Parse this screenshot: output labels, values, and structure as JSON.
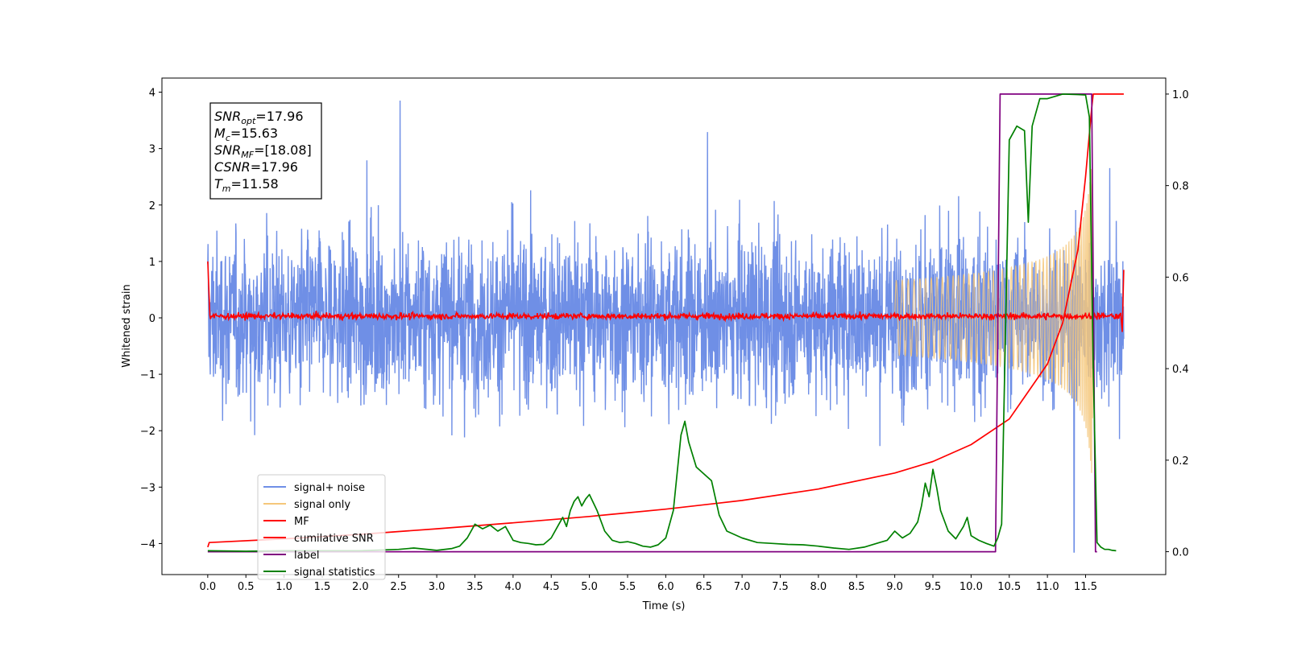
{
  "chart_data": {
    "type": "line",
    "xlabel": "Time (s)",
    "ylabel": "Whitened strain",
    "ylabel_right": "",
    "xlim": [
      -0.6,
      12.55
    ],
    "ylim": [
      -4.55,
      4.25
    ],
    "ylim_right": [
      -0.05,
      1.035
    ],
    "x_ticks": [
      "0.0",
      "0.5",
      "1.0",
      "1.5",
      "2.0",
      "2.5",
      "3.0",
      "3.5",
      "4.0",
      "4.5",
      "5.0",
      "5.5",
      "6.0",
      "6.5",
      "7.0",
      "7.5",
      "8.0",
      "8.5",
      "9.0",
      "9.5",
      "10.0",
      "10.5",
      "11.0",
      "11.5"
    ],
    "y_ticks": [
      "4",
      "3",
      "2",
      "1",
      "0",
      "−1",
      "−2",
      "−3",
      "−4"
    ],
    "y_ticks_right": [
      "1.0",
      "0.8",
      "0.6",
      "0.4",
      "0.2",
      "0.0"
    ],
    "legend_placement": "lower-left",
    "grid": false,
    "annotation": {
      "lines": [
        {
          "sym": "SNR",
          "sub": "opt",
          "value": "=17.96"
        },
        {
          "sym": "M",
          "sub": "c",
          "value": "=15.63"
        },
        {
          "sym": "SNR",
          "sub": "MF",
          "value": "=[18.08]"
        },
        {
          "sym": "CSNR",
          "sub": "",
          "value": "=17.96"
        },
        {
          "sym": "T",
          "sub": "m",
          "value": "=11.58"
        }
      ]
    },
    "series": [
      {
        "name": "signal+ noise",
        "color": "#6f8fe6",
        "axis": "left",
        "style": "noise",
        "x_range": [
          0,
          12
        ],
        "amplitude_typical": 1.3,
        "peak_values": [
          3.85,
          -4.15
        ]
      },
      {
        "name": "signal only",
        "color": "#f5c77a",
        "axis": "left",
        "style": "chirp",
        "x_range": [
          9.0,
          11.6
        ],
        "merger_time": 11.58,
        "peak_amplitude": 3.0
      },
      {
        "name": "MF",
        "color": "#ff0000",
        "axis": "left",
        "style": "matched-filter",
        "x": [
          0.0,
          0.03,
          6.0,
          11.9,
          11.97,
          12.0
        ],
        "y": [
          1.0,
          0.05,
          0.0,
          0.0,
          -0.3,
          0.85
        ],
        "noise_amplitude": 0.07
      },
      {
        "name": "cumilative SNR",
        "color": "#ff0000",
        "axis": "right",
        "x": [
          0.0,
          0.02,
          1.0,
          2.0,
          3.0,
          4.0,
          5.0,
          6.0,
          7.0,
          8.0,
          9.0,
          9.5,
          10.0,
          10.5,
          11.0,
          11.2,
          11.4,
          11.5,
          11.58,
          11.6,
          12.0
        ],
        "y": [
          0.01,
          0.02,
          0.028,
          0.038,
          0.05,
          0.063,
          0.077,
          0.093,
          0.112,
          0.137,
          0.172,
          0.197,
          0.234,
          0.29,
          0.41,
          0.5,
          0.66,
          0.82,
          0.97,
          1.0,
          1.0
        ]
      },
      {
        "name": "label",
        "color": "#800080",
        "axis": "right",
        "x": [
          0.0,
          10.32,
          10.38,
          11.58,
          11.63,
          11.65
        ],
        "y": [
          0.0,
          0.0,
          1.0,
          1.0,
          0.0,
          0.0
        ]
      },
      {
        "name": "signal statistics",
        "color": "#008000",
        "axis": "right",
        "x": [
          0.0,
          0.5,
          1.0,
          2.0,
          2.5,
          2.7,
          3.0,
          3.2,
          3.3,
          3.4,
          3.5,
          3.6,
          3.7,
          3.8,
          3.9,
          4.0,
          4.1,
          4.2,
          4.3,
          4.4,
          4.5,
          4.6,
          4.65,
          4.7,
          4.75,
          4.8,
          4.85,
          4.9,
          4.95,
          5.0,
          5.1,
          5.2,
          5.3,
          5.4,
          5.5,
          5.6,
          5.7,
          5.8,
          5.9,
          6.0,
          6.1,
          6.2,
          6.25,
          6.3,
          6.4,
          6.5,
          6.6,
          6.7,
          6.8,
          7.0,
          7.2,
          7.4,
          7.6,
          7.8,
          8.0,
          8.2,
          8.4,
          8.6,
          8.8,
          8.9,
          9.0,
          9.1,
          9.2,
          9.3,
          9.35,
          9.4,
          9.45,
          9.5,
          9.55,
          9.6,
          9.7,
          9.8,
          9.9,
          9.95,
          10.0,
          10.1,
          10.2,
          10.3,
          10.35,
          10.4,
          10.5,
          10.6,
          10.7,
          10.75,
          10.8,
          10.9,
          11.0,
          11.2,
          11.4,
          11.5,
          11.55,
          11.6,
          11.65,
          11.7,
          11.75,
          11.8,
          11.85,
          11.9
        ],
        "y": [
          0.002,
          0.001,
          0.002,
          0.002,
          0.005,
          0.008,
          0.003,
          0.007,
          0.012,
          0.03,
          0.06,
          0.05,
          0.058,
          0.045,
          0.055,
          0.025,
          0.02,
          0.018,
          0.015,
          0.016,
          0.03,
          0.06,
          0.075,
          0.055,
          0.09,
          0.11,
          0.12,
          0.1,
          0.115,
          0.125,
          0.09,
          0.045,
          0.025,
          0.02,
          0.022,
          0.018,
          0.012,
          0.01,
          0.015,
          0.03,
          0.09,
          0.255,
          0.285,
          0.24,
          0.185,
          0.17,
          0.155,
          0.08,
          0.045,
          0.03,
          0.02,
          0.018,
          0.016,
          0.015,
          0.012,
          0.008,
          0.005,
          0.01,
          0.02,
          0.025,
          0.045,
          0.03,
          0.04,
          0.065,
          0.1,
          0.15,
          0.12,
          0.18,
          0.14,
          0.09,
          0.045,
          0.028,
          0.055,
          0.075,
          0.035,
          0.025,
          0.018,
          0.012,
          0.03,
          0.06,
          0.9,
          0.93,
          0.92,
          0.72,
          0.93,
          0.99,
          0.99,
          1.0,
          0.999,
          0.998,
          0.95,
          0.4,
          0.02,
          0.01,
          0.005,
          0.005,
          0.003,
          0.002
        ]
      }
    ]
  }
}
